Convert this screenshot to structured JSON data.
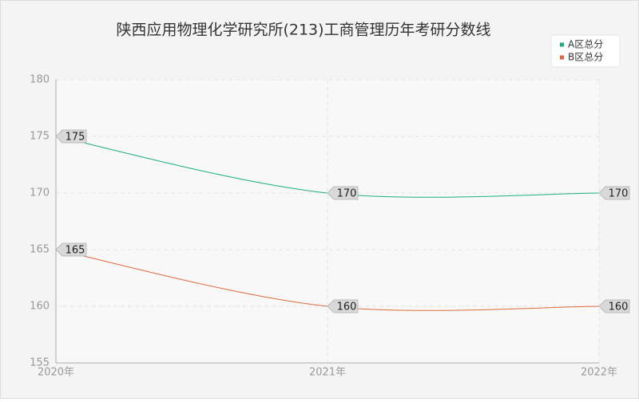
{
  "chart_data": {
    "type": "line",
    "title": "陕西应用物理化学研究所(213)工商管理历年考研分数线",
    "categories": [
      "2020年",
      "2021年",
      "2022年"
    ],
    "series": [
      {
        "name": "A区总分",
        "color": "#1aaf7d",
        "values": [
          175,
          170,
          170
        ]
      },
      {
        "name": "B区总分",
        "color": "#e0693c",
        "values": [
          165,
          160,
          160
        ]
      }
    ],
    "ylim": [
      155,
      180
    ],
    "yticks": [
      155,
      160,
      165,
      170,
      175,
      180
    ],
    "grid": true,
    "legend": "top-right"
  }
}
